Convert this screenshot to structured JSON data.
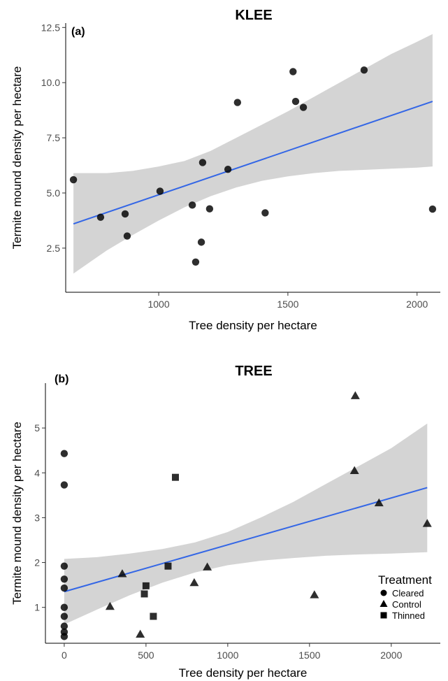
{
  "colors": {
    "fit_line": "#3366e6",
    "ribbon": "#cfcfcf",
    "point": "#000000"
  },
  "chart_data": [
    {
      "type": "scatter",
      "panel_label": "(a)",
      "title": "KLEE",
      "xlabel": "Tree density per hectare",
      "ylabel": "Termite mound density per hectare",
      "xlim": [
        640,
        2090
      ],
      "ylim": [
        0.5,
        12.7
      ],
      "xticks": [
        1000,
        1500,
        2000
      ],
      "yticks": [
        2.5,
        5.0,
        7.5,
        10.0,
        12.5
      ],
      "ytick_labels": [
        "2.5",
        "5.0",
        "7.5",
        "10.0",
        "12.5"
      ],
      "grid": false,
      "fit": {
        "x_start": 670,
        "y_start": 3.6,
        "x_end": 2060,
        "y_end": 9.15,
        "ribbon_x": [
          670,
          800,
          900,
          1000,
          1100,
          1200,
          1300,
          1400,
          1500,
          1600,
          1700,
          1800,
          1900,
          2000,
          2060
        ],
        "ribbon_upper": [
          5.9,
          5.9,
          6.0,
          6.2,
          6.45,
          6.9,
          7.5,
          8.1,
          8.7,
          9.35,
          10.0,
          10.65,
          11.3,
          11.85,
          12.2
        ],
        "ribbon_lower": [
          1.35,
          2.4,
          3.1,
          3.75,
          4.35,
          4.85,
          5.25,
          5.55,
          5.75,
          5.9,
          6.0,
          6.05,
          6.1,
          6.15,
          6.2
        ]
      },
      "points": [
        {
          "x": 670,
          "y": 5.6
        },
        {
          "x": 775,
          "y": 3.9
        },
        {
          "x": 870,
          "y": 4.05
        },
        {
          "x": 878,
          "y": 3.05
        },
        {
          "x": 1005,
          "y": 5.08
        },
        {
          "x": 1130,
          "y": 4.45
        },
        {
          "x": 1143,
          "y": 1.87
        },
        {
          "x": 1165,
          "y": 2.77
        },
        {
          "x": 1170,
          "y": 6.38
        },
        {
          "x": 1197,
          "y": 4.28
        },
        {
          "x": 1268,
          "y": 6.07
        },
        {
          "x": 1305,
          "y": 9.1
        },
        {
          "x": 1412,
          "y": 4.1
        },
        {
          "x": 1520,
          "y": 10.5
        },
        {
          "x": 1530,
          "y": 9.15
        },
        {
          "x": 1560,
          "y": 8.88
        },
        {
          "x": 1795,
          "y": 10.57
        },
        {
          "x": 2060,
          "y": 4.27
        }
      ]
    },
    {
      "type": "scatter",
      "panel_label": "(b)",
      "title": "TREE",
      "xlabel": "Tree density per hectare",
      "ylabel": "Termite mound density per hectare",
      "xlim": [
        -115,
        2300
      ],
      "ylim": [
        0.2,
        6.0
      ],
      "xticks": [
        0,
        500,
        1000,
        1500,
        2000
      ],
      "yticks": [
        1,
        2,
        3,
        4,
        5
      ],
      "ytick_labels": [
        "1",
        "2",
        "3",
        "4",
        "5"
      ],
      "grid": false,
      "legend": {
        "title": "Treatment",
        "position": "bottom-right",
        "entries": [
          {
            "label": "Cleared",
            "shape": "circle"
          },
          {
            "label": "Control",
            "shape": "triangle"
          },
          {
            "label": "Thinned",
            "shape": "square"
          }
        ]
      },
      "fit": {
        "x_start": 0,
        "y_start": 1.35,
        "x_end": 2220,
        "y_end": 3.67,
        "ribbon_x": [
          0,
          200,
          400,
          600,
          800,
          1000,
          1200,
          1400,
          1600,
          1800,
          2000,
          2220
        ],
        "ribbon_upper": [
          2.08,
          2.12,
          2.2,
          2.3,
          2.45,
          2.68,
          3.0,
          3.35,
          3.75,
          4.15,
          4.55,
          5.1
        ],
        "ribbon_lower": [
          0.62,
          0.95,
          1.27,
          1.55,
          1.78,
          1.94,
          2.04,
          2.1,
          2.15,
          2.18,
          2.2,
          2.23
        ]
      },
      "series": [
        {
          "name": "Cleared",
          "shape": "circle",
          "points": [
            {
              "x": 0,
              "y": 4.43
            },
            {
              "x": 0,
              "y": 3.73
            },
            {
              "x": 0,
              "y": 1.92
            },
            {
              "x": 0,
              "y": 1.63
            },
            {
              "x": 0,
              "y": 1.43
            },
            {
              "x": 0,
              "y": 1.0
            },
            {
              "x": 0,
              "y": 0.8
            },
            {
              "x": 0,
              "y": 0.58
            },
            {
              "x": 0,
              "y": 0.45
            },
            {
              "x": 0,
              "y": 0.35
            }
          ]
        },
        {
          "name": "Control",
          "shape": "triangle",
          "points": [
            {
              "x": 280,
              "y": 1.02
            },
            {
              "x": 355,
              "y": 1.75
            },
            {
              "x": 465,
              "y": 0.4
            },
            {
              "x": 795,
              "y": 1.55
            },
            {
              "x": 875,
              "y": 1.9
            },
            {
              "x": 1530,
              "y": 1.28
            },
            {
              "x": 1775,
              "y": 4.05
            },
            {
              "x": 1780,
              "y": 5.72
            },
            {
              "x": 1925,
              "y": 3.33
            },
            {
              "x": 2220,
              "y": 2.87
            }
          ]
        },
        {
          "name": "Thinned",
          "shape": "square",
          "points": [
            {
              "x": 490,
              "y": 1.3
            },
            {
              "x": 500,
              "y": 1.48
            },
            {
              "x": 545,
              "y": 0.8
            },
            {
              "x": 635,
              "y": 1.92
            },
            {
              "x": 680,
              "y": 3.9
            }
          ]
        }
      ]
    }
  ]
}
